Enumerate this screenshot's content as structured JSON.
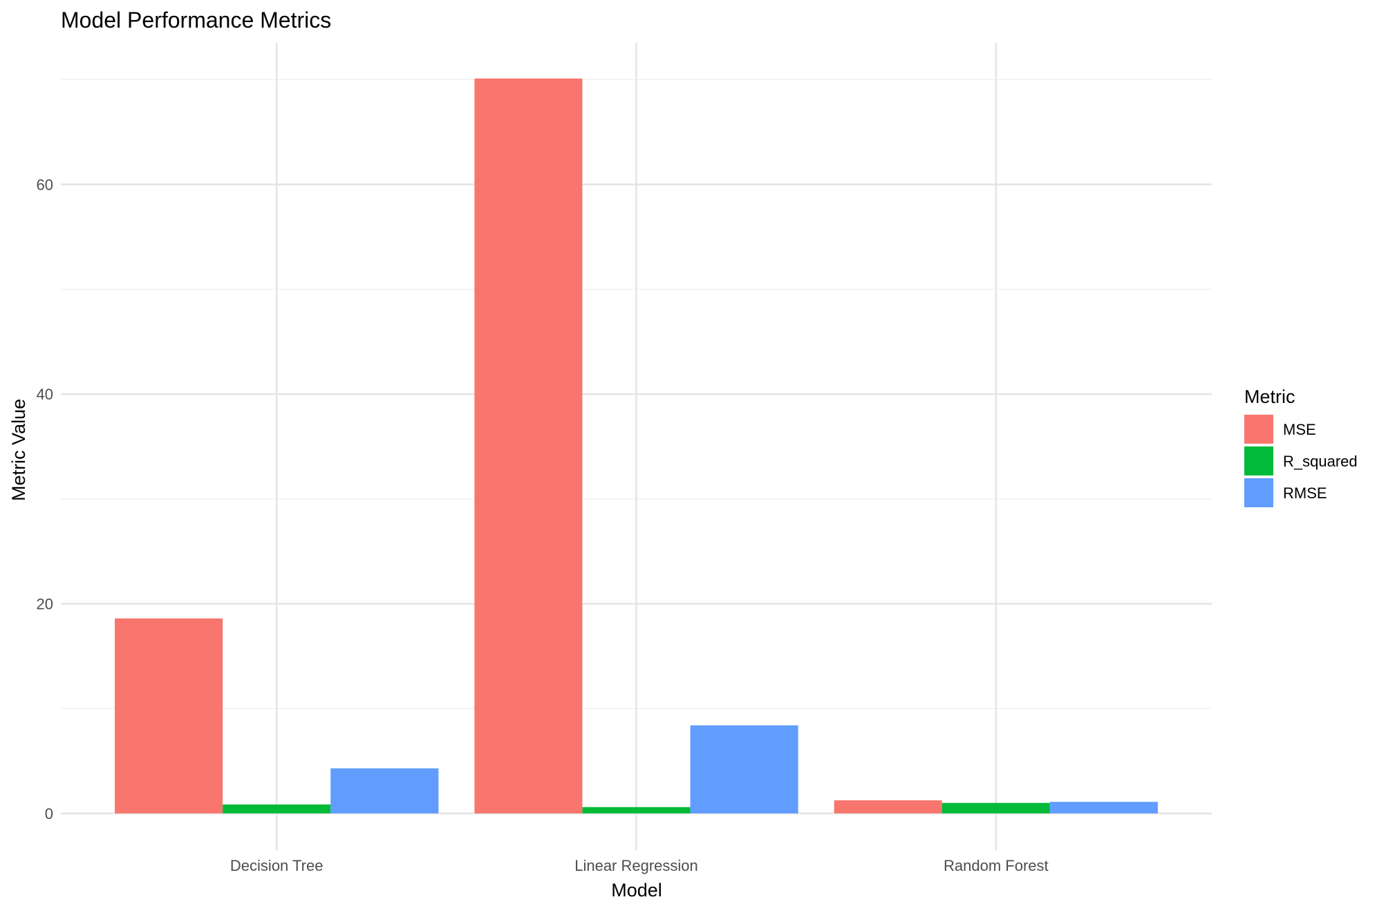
{
  "chart_data": {
    "type": "bar",
    "title": "Model Performance Metrics",
    "xlabel": "Model",
    "ylabel": "Metric Value",
    "categories": [
      "Decision Tree",
      "Linear Regression",
      "Random Forest"
    ],
    "series": [
      {
        "name": "MSE",
        "color": "#F8766D",
        "values": [
          18.6,
          70.1,
          1.25
        ]
      },
      {
        "name": "R_squared",
        "color": "#00BA38",
        "values": [
          0.85,
          0.6,
          1.0
        ]
      },
      {
        "name": "RMSE",
        "color": "#619CFF",
        "values": [
          4.3,
          8.4,
          1.1
        ]
      }
    ],
    "ylim": [
      -3.5,
      73.5
    ],
    "y_ticks": [
      0,
      20,
      40,
      60
    ],
    "y_minor_ticks": [
      10,
      30,
      50,
      70
    ],
    "grid": true,
    "legend": {
      "title": "Metric",
      "position": "right"
    }
  }
}
